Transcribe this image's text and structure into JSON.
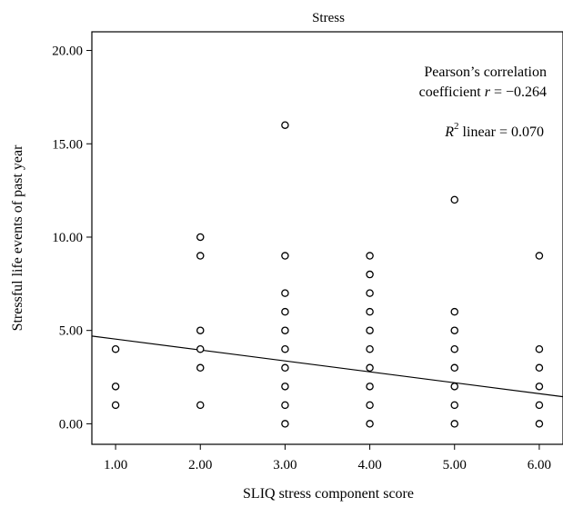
{
  "chart_data": {
    "type": "scatter",
    "title": "Stress",
    "xlabel": "SLIQ stress component score",
    "ylabel": "Stressful life events of past year",
    "xlim": [
      0.72,
      6.28
    ],
    "ylim": [
      -1.1,
      21.0
    ],
    "x_ticks": [
      1,
      2,
      3,
      4,
      5,
      6
    ],
    "x_tick_labels": [
      "1.00",
      "2.00",
      "3.00",
      "4.00",
      "5.00",
      "6.00"
    ],
    "y_ticks": [
      0,
      5,
      10,
      15,
      20
    ],
    "y_tick_labels": [
      "0.00",
      "5.00",
      "10.00",
      "15.00",
      "20.00"
    ],
    "grid": false,
    "annotation": {
      "line1": "Pearson’s correlation",
      "line2_prefix": "coefficient ",
      "line2_var": "r",
      "line2_value": " = −0.264",
      "line3_var": "R",
      "line3_sup": "2",
      "line3_value": " linear = 0.070"
    },
    "fit_line": {
      "x": [
        0.72,
        6.28
      ],
      "y": [
        4.7,
        1.45
      ]
    },
    "points": [
      {
        "x": 1,
        "y": 4
      },
      {
        "x": 1,
        "y": 2
      },
      {
        "x": 1,
        "y": 1
      },
      {
        "x": 2,
        "y": 10
      },
      {
        "x": 2,
        "y": 9
      },
      {
        "x": 2,
        "y": 5
      },
      {
        "x": 2,
        "y": 4
      },
      {
        "x": 2,
        "y": 3
      },
      {
        "x": 2,
        "y": 1
      },
      {
        "x": 3,
        "y": 16
      },
      {
        "x": 3,
        "y": 9
      },
      {
        "x": 3,
        "y": 7
      },
      {
        "x": 3,
        "y": 6
      },
      {
        "x": 3,
        "y": 5
      },
      {
        "x": 3,
        "y": 4
      },
      {
        "x": 3,
        "y": 3
      },
      {
        "x": 3,
        "y": 2
      },
      {
        "x": 3,
        "y": 1
      },
      {
        "x": 3,
        "y": 0
      },
      {
        "x": 4,
        "y": 9
      },
      {
        "x": 4,
        "y": 8
      },
      {
        "x": 4,
        "y": 7
      },
      {
        "x": 4,
        "y": 6
      },
      {
        "x": 4,
        "y": 5
      },
      {
        "x": 4,
        "y": 4
      },
      {
        "x": 4,
        "y": 3
      },
      {
        "x": 4,
        "y": 2
      },
      {
        "x": 4,
        "y": 1
      },
      {
        "x": 4,
        "y": 0
      },
      {
        "x": 5,
        "y": 12
      },
      {
        "x": 5,
        "y": 6
      },
      {
        "x": 5,
        "y": 5
      },
      {
        "x": 5,
        "y": 4
      },
      {
        "x": 5,
        "y": 3
      },
      {
        "x": 5,
        "y": 2
      },
      {
        "x": 5,
        "y": 1
      },
      {
        "x": 5,
        "y": 0
      },
      {
        "x": 6,
        "y": 9
      },
      {
        "x": 6,
        "y": 4
      },
      {
        "x": 6,
        "y": 3
      },
      {
        "x": 6,
        "y": 2
      },
      {
        "x": 6,
        "y": 1
      },
      {
        "x": 6,
        "y": 0
      }
    ]
  }
}
